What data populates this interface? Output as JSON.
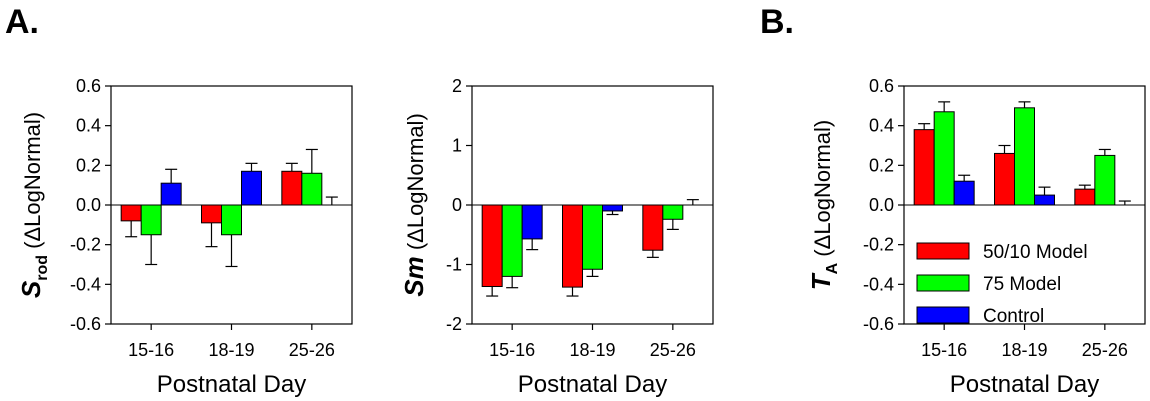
{
  "panel_labels": [
    "A.",
    "B."
  ],
  "colors": {
    "50/10 Model": "#ff0000",
    "75 Model": "#00ff00",
    "Control": "#0000ff"
  },
  "legend": [
    "50/10 Model",
    "75 Model",
    "Control"
  ],
  "chart_data": [
    {
      "type": "bar",
      "ylabel_main": "S",
      "ylabel_sub": "rod",
      "ylabel_rest": " (ΔLogNormal)",
      "xlabel": "Postnatal Day",
      "categories": [
        "15-16",
        "18-19",
        "25-26"
      ],
      "ylim": [
        -0.6,
        0.6
      ],
      "yticks": [
        "-0.6",
        "-0.4",
        "-0.2",
        "0.0",
        "0.2",
        "0.4",
        "0.6"
      ],
      "series": [
        {
          "name": "50/10 Model",
          "values": [
            -0.08,
            -0.09,
            0.17
          ],
          "errors": [
            0.08,
            0.12,
            0.04
          ]
        },
        {
          "name": "75 Model",
          "values": [
            -0.15,
            -0.15,
            0.16
          ],
          "errors": [
            0.15,
            0.16,
            0.12
          ]
        },
        {
          "name": "Control",
          "values": [
            0.11,
            0.17,
            0.0
          ],
          "errors": [
            0.07,
            0.04,
            0.04
          ]
        }
      ]
    },
    {
      "type": "bar",
      "ylabel_main": "Sm",
      "ylabel_sub": "",
      "ylabel_rest": " (ΔLogNormal)",
      "xlabel": "Postnatal Day",
      "categories": [
        "15-16",
        "18-19",
        "25-26"
      ],
      "ylim": [
        -2,
        2
      ],
      "yticks": [
        "-2",
        "-1",
        "0",
        "1",
        "2"
      ],
      "series": [
        {
          "name": "50/10 Model",
          "values": [
            -1.37,
            -1.38,
            -0.76
          ],
          "errors": [
            0.16,
            0.15,
            0.12
          ]
        },
        {
          "name": "75 Model",
          "values": [
            -1.2,
            -1.08,
            -0.24
          ],
          "errors": [
            0.19,
            0.12,
            0.17
          ]
        },
        {
          "name": "Control",
          "values": [
            -0.57,
            -0.1,
            0.0
          ],
          "errors": [
            0.18,
            0.06,
            0.09
          ]
        }
      ]
    },
    {
      "type": "bar",
      "ylabel_main": "T",
      "ylabel_sub": "A",
      "ylabel_rest": " (ΔLogNormal)",
      "xlabel": "Postnatal Day",
      "categories": [
        "15-16",
        "18-19",
        "25-26"
      ],
      "ylim": [
        -0.6,
        0.6
      ],
      "yticks": [
        "-0.6",
        "-0.4",
        "-0.2",
        "0.0",
        "0.2",
        "0.4",
        "0.6"
      ],
      "legend_position": "bottom-left",
      "series": [
        {
          "name": "50/10 Model",
          "values": [
            0.38,
            0.26,
            0.08
          ],
          "errors": [
            0.03,
            0.04,
            0.02
          ]
        },
        {
          "name": "75 Model",
          "values": [
            0.47,
            0.49,
            0.25
          ],
          "errors": [
            0.05,
            0.03,
            0.03
          ]
        },
        {
          "name": "Control",
          "values": [
            0.12,
            0.05,
            0.0
          ],
          "errors": [
            0.03,
            0.04,
            0.02
          ]
        }
      ]
    }
  ]
}
